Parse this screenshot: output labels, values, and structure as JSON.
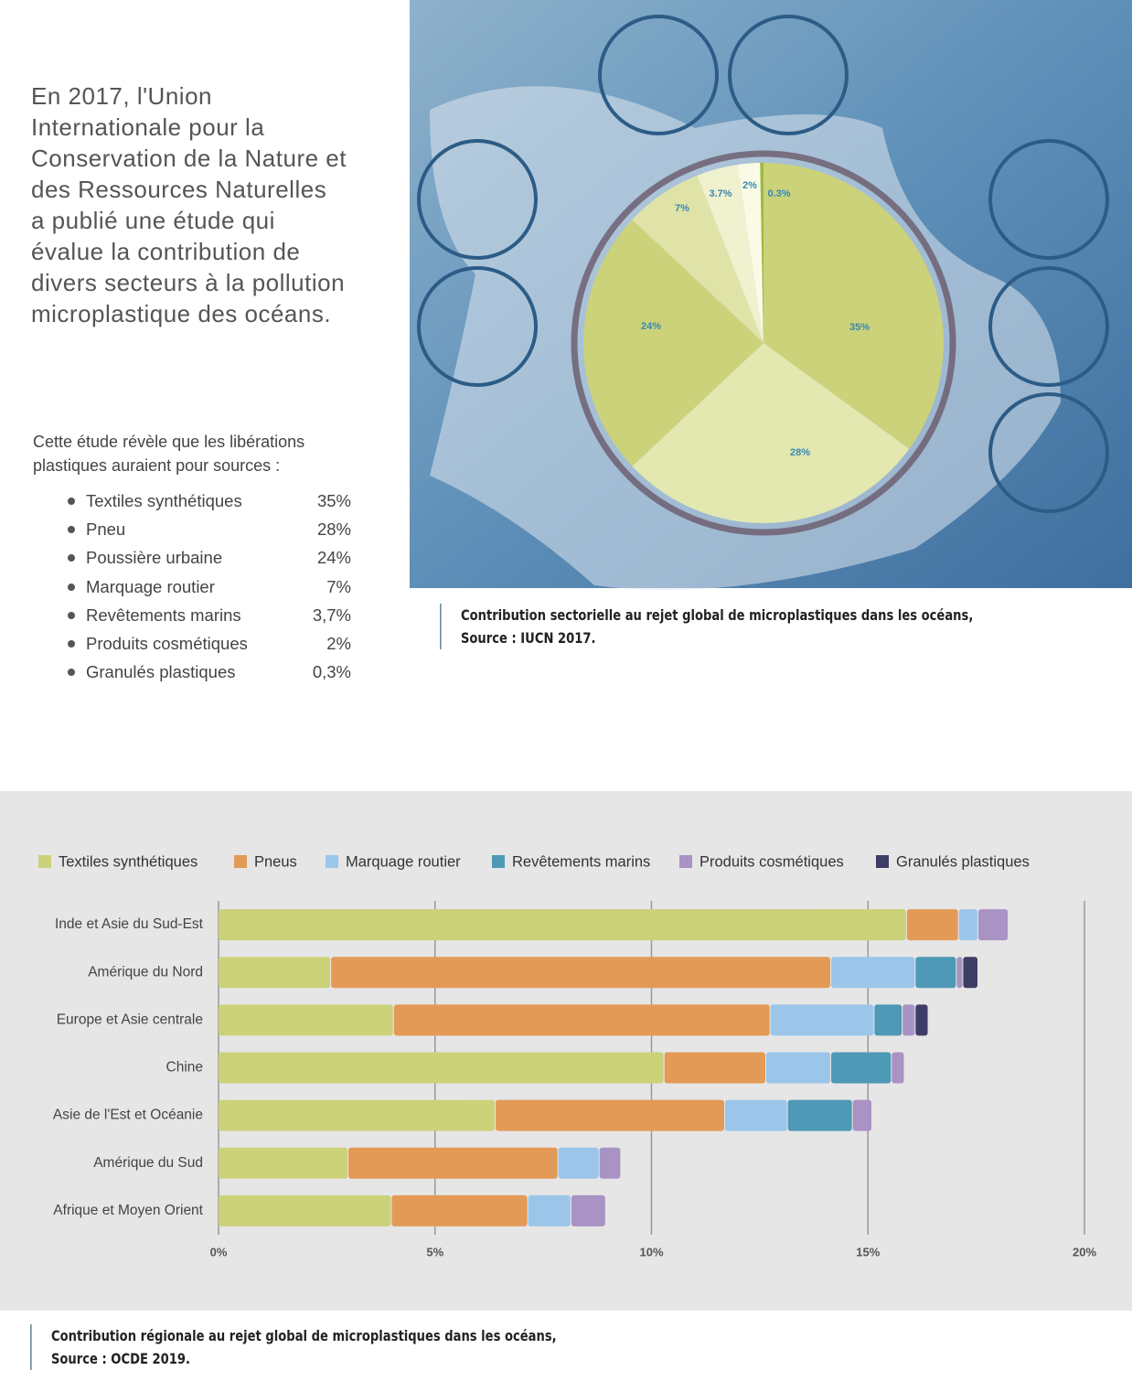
{
  "intro": {
    "paragraph": "En 2017, l'Union Internationale pour la Conservation de la Nature et des Ressources Naturelles a publié une étude qui évalue la contribution de divers secteurs à la pollution microplastique des océans.",
    "lead": "Cette étude révèle que les libérations plastiques auraient pour sources :",
    "list": [
      {
        "name": "Textiles synthétiques",
        "share": "35%"
      },
      {
        "name": "Pneu",
        "share": "28%"
      },
      {
        "name": "Poussière urbaine",
        "share": "24%"
      },
      {
        "name": "Marquage routier",
        "share": "7%"
      },
      {
        "name": "Revêtements marins",
        "share": "3,7%"
      },
      {
        "name": "Produits cosmétiques",
        "share": "2%"
      },
      {
        "name": "Granulés plastiques",
        "share": "0,3%"
      }
    ]
  },
  "captions": {
    "pie": [
      "Contribution sectorielle au rejet global de microplastiques dans les océans,",
      "Source : IUCN 2017."
    ],
    "bar": [
      "Contribution régionale au rejet global de microplastiques dans les océans,",
      "Source : OCDE 2019."
    ]
  },
  "chart_data": [
    {
      "type": "pie",
      "values": [
        35,
        28,
        24,
        7,
        3.7,
        2,
        0.3
      ],
      "value_labels": [
        "35%",
        "28%",
        "24%",
        "7%",
        "3.7%",
        "2%",
        "0.3%"
      ],
      "colors": [
        "#cbd27a",
        "#e3e7b0",
        "#cbd27a",
        "#dfe3a8",
        "#eff1cf",
        "#fafbe6",
        "#9fba3a"
      ]
    },
    {
      "type": "bar",
      "orientation": "horizontal",
      "stacked": true,
      "grid": true,
      "legend": "top",
      "categories": [
        "Inde et Asie du Sud-Est",
        "Amérique du Nord",
        "Europe et Asie centrale",
        "Chine",
        "Asie de l'Est et Océanie",
        "Amérique du Sud",
        "Afrique et Moyen Orient"
      ],
      "series": [
        {
          "name": "Textiles synthétiques",
          "color": "#cbd27a",
          "values": [
            15.9,
            2.6,
            4.05,
            10.3,
            6.4,
            3.0,
            4.0
          ]
        },
        {
          "name": "Pneus",
          "color": "#e39a57",
          "values": [
            1.2,
            11.55,
            8.7,
            2.35,
            5.3,
            4.85,
            3.15
          ]
        },
        {
          "name": "Marquage routier",
          "color": "#9bc6ea",
          "values": [
            0.45,
            1.95,
            2.4,
            1.5,
            1.45,
            0.95,
            1.0
          ]
        },
        {
          "name": "Revêtements marins",
          "color": "#4e99b5",
          "values": [
            0,
            0.95,
            0.65,
            1.4,
            1.5,
            0,
            0
          ]
        },
        {
          "name": "Produits cosmétiques",
          "color": "#a893c4",
          "values": [
            0.7,
            0.15,
            0.3,
            0.3,
            0.45,
            0.5,
            0.8
          ]
        },
        {
          "name": "Granulés plastiques",
          "color": "#3d3d66",
          "values": [
            0,
            0.35,
            0.3,
            0,
            0,
            0,
            0
          ]
        }
      ],
      "xlim": [
        0,
        20
      ],
      "xticks": [
        {
          "value": 0,
          "label": "0%"
        },
        {
          "value": 5,
          "label": "5%"
        },
        {
          "value": 10,
          "label": "10%"
        },
        {
          "value": 15,
          "label": "15%"
        },
        {
          "value": 20,
          "label": "20%"
        }
      ]
    }
  ]
}
